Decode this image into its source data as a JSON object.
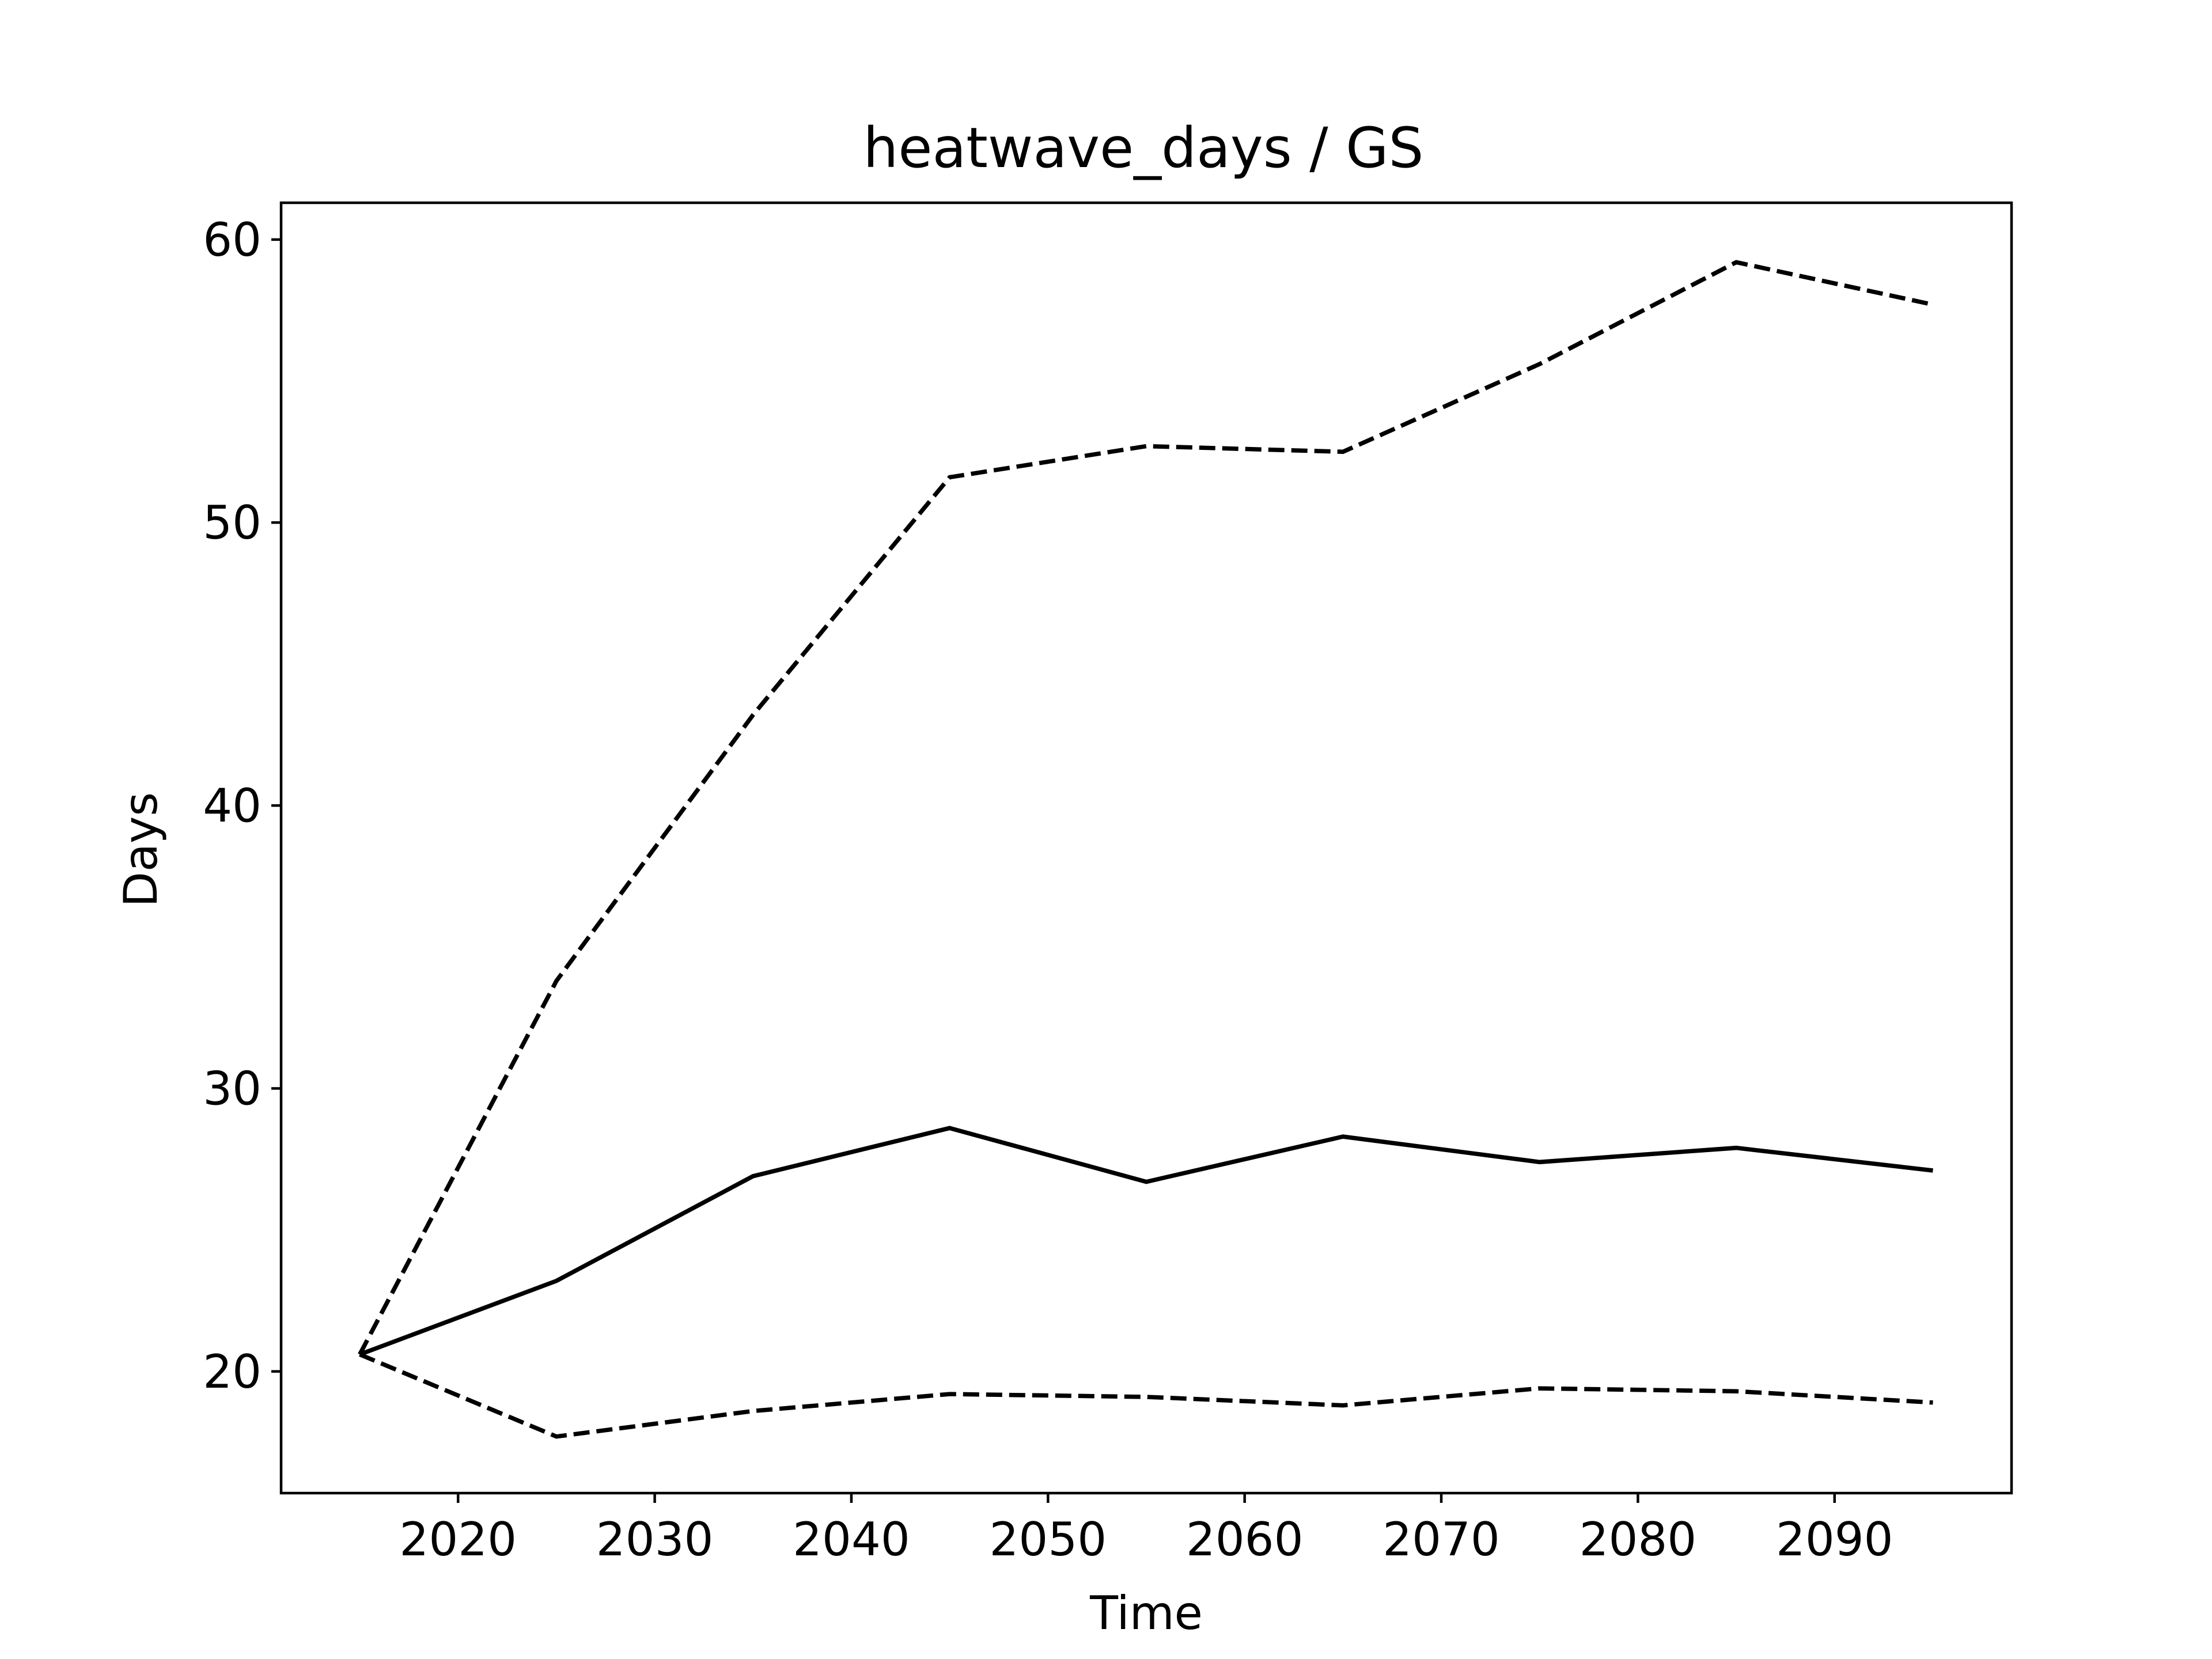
{
  "chart_data": {
    "type": "line",
    "title": "heatwave_days / GS",
    "xlabel": "Time",
    "ylabel": "Days",
    "xlim": [
      2011,
      2099
    ],
    "ylim": [
      15.7,
      61.3
    ],
    "xticks": [
      2020,
      2030,
      2040,
      2050,
      2060,
      2070,
      2080,
      2090
    ],
    "yticks": [
      20,
      30,
      40,
      50,
      60
    ],
    "x": [
      2015,
      2025,
      2035,
      2045,
      2055,
      2065,
      2075,
      2085,
      2095
    ],
    "grid": false,
    "series": [
      {
        "style": "solid",
        "color": "#000000",
        "values": [
          20.6,
          23.2,
          26.9,
          28.6,
          26.7,
          28.3,
          27.4,
          27.9,
          27.1
        ]
      },
      {
        "style": "dashed",
        "color": "#000000",
        "values": [
          20.6,
          33.8,
          43.2,
          51.6,
          52.7,
          52.5,
          55.6,
          59.2,
          57.7
        ]
      },
      {
        "style": "dashed",
        "color": "#000000",
        "values": [
          20.6,
          17.7,
          18.6,
          19.2,
          19.1,
          18.8,
          19.4,
          19.3,
          18.9
        ]
      }
    ]
  }
}
